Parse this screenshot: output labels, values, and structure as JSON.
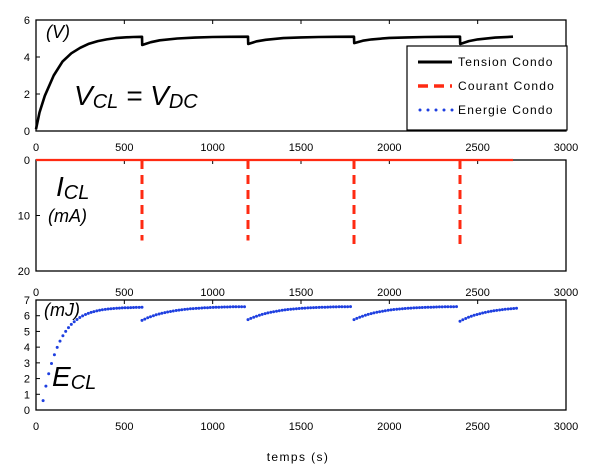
{
  "chart_data": [
    {
      "type": "line",
      "panel": "tension",
      "unit_label": "(V)",
      "annotation": {
        "main": "V",
        "sub": "CL",
        "eq": " = V",
        "sub2": "DC"
      },
      "xlim": [
        0,
        3000
      ],
      "ylim": [
        0,
        6
      ],
      "x_ticks": [
        0,
        500,
        1000,
        1500,
        2000,
        2500,
        3000
      ],
      "y_ticks": [
        0,
        2,
        4,
        6
      ],
      "series": [
        {
          "name": "Tension Condo",
          "color": "#000000",
          "style": "solid",
          "x": [
            0,
            20,
            50,
            100,
            150,
            200,
            250,
            300,
            350,
            400,
            450,
            500,
            550,
            600,
            601,
            650,
            700,
            800,
            900,
            1000,
            1100,
            1200,
            1201,
            1250,
            1300,
            1400,
            1500,
            1600,
            1700,
            1800,
            1801,
            1850,
            1900,
            2000,
            2100,
            2200,
            2300,
            2400,
            2401,
            2450,
            2500,
            2600,
            2700
          ],
          "y": [
            0.1,
            1.0,
            1.9,
            3.0,
            3.75,
            4.2,
            4.5,
            4.72,
            4.86,
            4.95,
            5.02,
            5.06,
            5.08,
            5.09,
            4.65,
            4.8,
            4.9,
            5.0,
            5.05,
            5.08,
            5.09,
            5.1,
            4.7,
            4.85,
            4.93,
            5.02,
            5.06,
            5.08,
            5.09,
            5.1,
            4.75,
            4.88,
            4.95,
            5.03,
            5.06,
            5.08,
            5.09,
            5.1,
            4.7,
            4.86,
            4.95,
            5.05,
            5.1
          ]
        }
      ],
      "legend": [
        {
          "label": "Tension Condo",
          "style": "solid",
          "color": "#000000"
        },
        {
          "label": "Courant Condo",
          "style": "dashed",
          "color": "#ff2a12"
        },
        {
          "label": "Energie Condo",
          "style": "dotted",
          "color": "#1e3fe0"
        }
      ]
    },
    {
      "type": "line",
      "panel": "courant",
      "unit_label": "(mA)",
      "annotation": {
        "main": "I",
        "sub": "CL"
      },
      "xlim": [
        0,
        3000
      ],
      "ylim": [
        0,
        20
      ],
      "y_inverted": true,
      "x_ticks": [
        0,
        500,
        1000,
        1500,
        2000,
        2500,
        3000
      ],
      "y_ticks": [
        0,
        10,
        20
      ],
      "series": [
        {
          "name": "Courant Condo",
          "color": "#ff2a12",
          "style": "dashed",
          "baseline": 0,
          "x_end": 2700,
          "pulses": [
            {
              "x": 600,
              "y": 14.5
            },
            {
              "x": 1200,
              "y": 14.5
            },
            {
              "x": 1800,
              "y": 15.5
            },
            {
              "x": 2400,
              "y": 15.5
            }
          ]
        }
      ]
    },
    {
      "type": "scatter",
      "panel": "energie",
      "unit_label": "(mJ)",
      "annotation": {
        "main": "E",
        "sub": "CL"
      },
      "xlim": [
        0,
        3000
      ],
      "ylim": [
        0,
        7
      ],
      "x_ticks": [
        0,
        500,
        1000,
        1500,
        2000,
        2500,
        3000
      ],
      "y_ticks": [
        0,
        1,
        2,
        3,
        4,
        5,
        6,
        7
      ],
      "xlabel": "temps (s)",
      "series": [
        {
          "name": "Energie Condo",
          "color": "#1e3fe0",
          "style": "dotted",
          "segments": [
            {
              "x0": 40,
              "x1": 600,
              "y0": 0.6,
              "ymax": 6.55,
              "tau": 95
            },
            {
              "x0": 600,
              "x1": 1180,
              "y0": 5.7,
              "ymax": 6.6,
              "tau": 160
            },
            {
              "x0": 1200,
              "x1": 1780,
              "y0": 5.75,
              "ymax": 6.6,
              "tau": 160
            },
            {
              "x0": 1800,
              "x1": 2380,
              "y0": 5.75,
              "ymax": 6.6,
              "tau": 160
            },
            {
              "x0": 2400,
              "x1": 2720,
              "y0": 5.65,
              "ymax": 6.6,
              "tau": 160
            }
          ]
        }
      ]
    }
  ]
}
